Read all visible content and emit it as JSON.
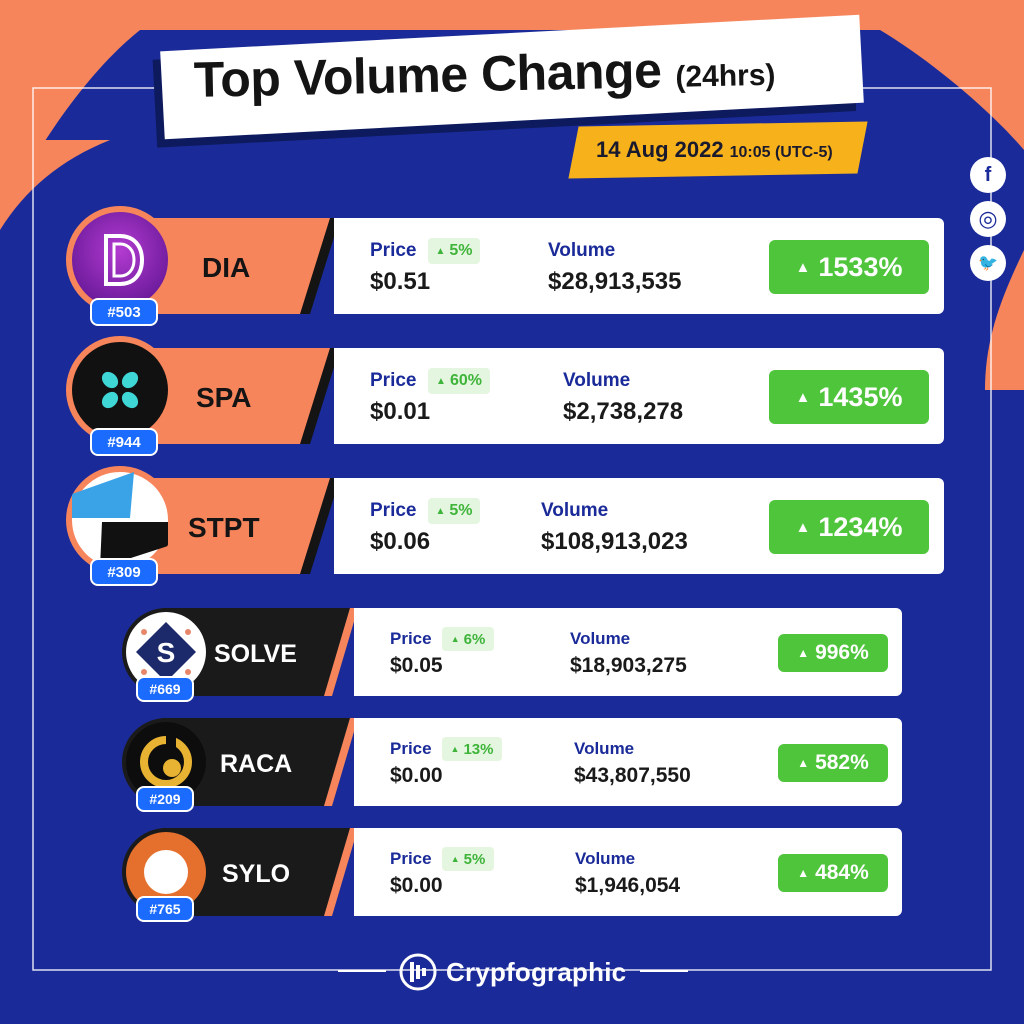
{
  "header": {
    "title": "Top Volume Change",
    "title_suffix": "(24hrs)",
    "date": "14 Aug 2022",
    "time": "10:05 (UTC-5)"
  },
  "social": [
    {
      "icon": "facebook-icon",
      "glyph": "f"
    },
    {
      "icon": "instagram-icon",
      "glyph": "◎"
    },
    {
      "icon": "twitter-icon",
      "glyph": "🐦"
    }
  ],
  "labels": {
    "price": "Price",
    "volume": "Volume"
  },
  "coins": [
    {
      "symbol": "DIA",
      "rank": "#503",
      "price": "$0.51",
      "price_change": "5%",
      "volume": "$28,913,535",
      "volume_change": "1533%"
    },
    {
      "symbol": "SPA",
      "rank": "#944",
      "price": "$0.01",
      "price_change": "60%",
      "volume": "$2,738,278",
      "volume_change": "1435%"
    },
    {
      "symbol": "STPT",
      "rank": "#309",
      "price": "$0.06",
      "price_change": "5%",
      "volume": "$108,913,023",
      "volume_change": "1234%"
    },
    {
      "symbol": "SOLVE",
      "rank": "#669",
      "price": "$0.05",
      "price_change": "6%",
      "volume": "$18,903,275",
      "volume_change": "996%"
    },
    {
      "symbol": "RACA",
      "rank": "#209",
      "price": "$0.00",
      "price_change": "13%",
      "volume": "$43,807,550",
      "volume_change": "582%"
    },
    {
      "symbol": "SYLO",
      "rank": "#765",
      "price": "$0.00",
      "price_change": "5%",
      "volume": "$1,946,054",
      "volume_change": "484%"
    }
  ],
  "footer": {
    "brand": "Crypfographic"
  },
  "colors": {
    "background": "#1a2b99",
    "accent_orange": "#f7855c",
    "accent_yellow": "#f7b21b",
    "positive": "#4fc53c",
    "rank_blue": "#1b6bff"
  }
}
